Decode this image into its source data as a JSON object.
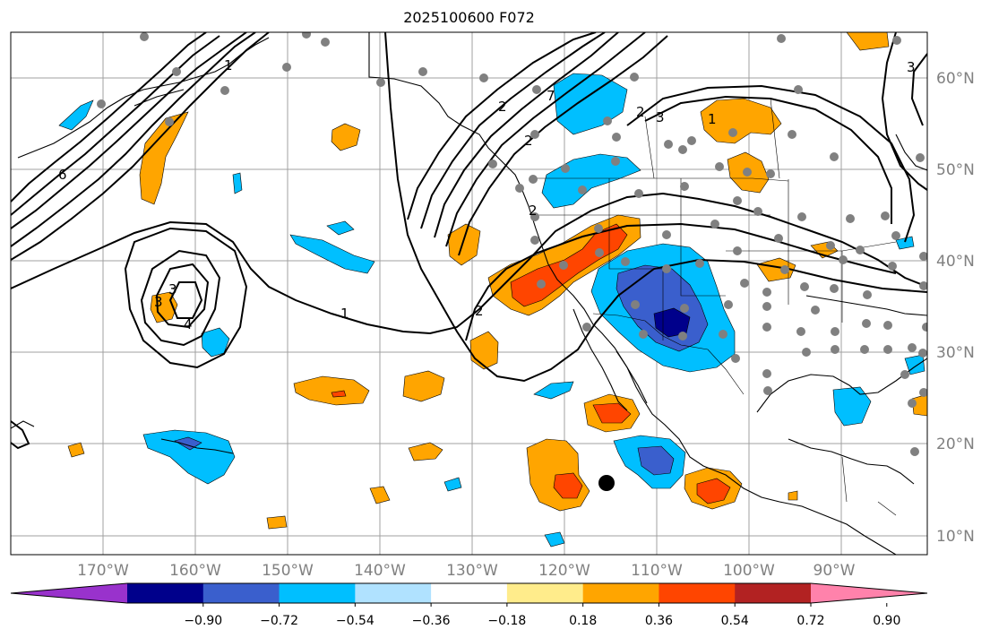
{
  "title": "2025100600 F072",
  "longitude_labels": [
    "170°W",
    "160°W",
    "150°W",
    "140°W",
    "130°W",
    "120°W",
    "110°W",
    "100°W",
    "90°W"
  ],
  "latitude_labels": [
    "60°N",
    "50°N",
    "40°N",
    "30°N",
    "20°N",
    "10°N"
  ],
  "colorbar": {
    "ticks": [
      "−0.90",
      "−0.72",
      "−0.54",
      "−0.36",
      "−0.18",
      "0.18",
      "0.36",
      "0.54",
      "0.72",
      "0.90"
    ],
    "colors": [
      "#9932cc",
      "#00008b",
      "#3a5fcd",
      "#00bfff",
      "#b0e2ff",
      "#ffffff",
      "#ffec8b",
      "#ffa500",
      "#ff4500",
      "#b22222",
      "#ff82ab"
    ]
  },
  "contour_labels": [
    "1",
    "2",
    "3",
    "4",
    "1",
    "2",
    "3",
    "2",
    "3",
    "1",
    "2",
    "6",
    "7",
    "2",
    "3"
  ],
  "colors": {
    "positive": "#ffa500",
    "strong_positive": "#ff4500",
    "negative": "#00bfff",
    "strong_negative": "#3a5fcd",
    "extreme_negative": "#00008b"
  }
}
